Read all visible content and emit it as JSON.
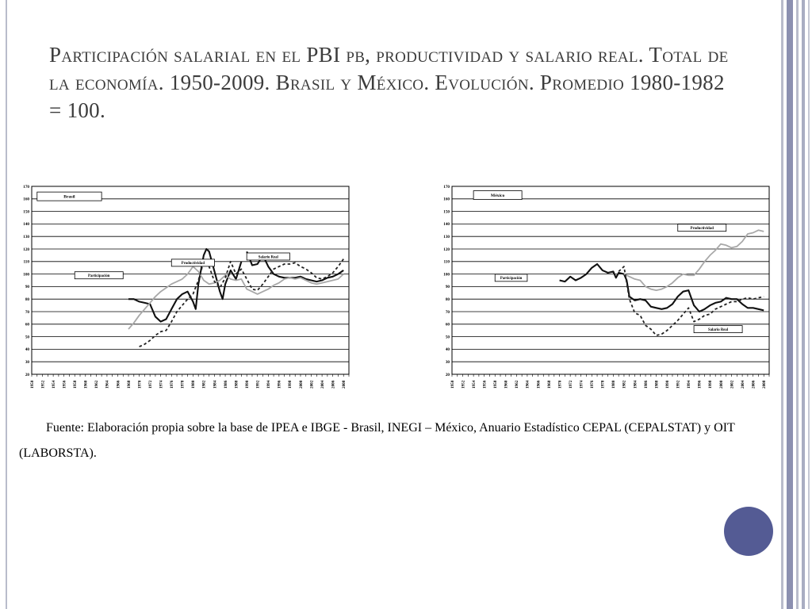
{
  "title": "Participación salarial en el PBI pb, productividad y salario real. Total de la economía. 1950-2009. Brasil y México. Evolución. Promedio 1980-1982 = 100.",
  "source_text": "Fuente: Elaboración propia sobre la base de IPEA e IBGE - Brasil, INEGI – México, Anuario Estadístico CEPAL (CEPALSTAT) y OIT (LABORSTA).",
  "colors": {
    "participacion": "#111111",
    "productividad": "#a8a8a8",
    "salario_real": "#222222",
    "accent_dot": "#545b94",
    "strip": "#b9bccb"
  },
  "chart_data": [
    {
      "type": "line",
      "title": "Brasil",
      "x_tick_labels": [
        "1950",
        "1952",
        "1954",
        "1956",
        "1958",
        "1960",
        "1962",
        "1964",
        "1966",
        "1968",
        "1970",
        "1972",
        "1974",
        "1976",
        "1978",
        "1980",
        "1982",
        "1984",
        "1986",
        "1988",
        "1990",
        "1992",
        "1994",
        "1996",
        "1998",
        "2000",
        "2002",
        "2004",
        "2006",
        "2008"
      ],
      "y_tick_labels": [
        "20",
        "30",
        "40",
        "50",
        "60",
        "70",
        "80",
        "90",
        "100",
        "110",
        "120",
        "130",
        "140",
        "150",
        "160",
        "170"
      ],
      "xlim": [
        1950,
        2009
      ],
      "ylim": [
        20,
        170
      ],
      "grid": true,
      "annotations": [
        "Productividad",
        "Salario Real",
        "Participación"
      ],
      "series": [
        {
          "name": "Participación",
          "style": "solid",
          "segments": [
            [
              [
                1968,
                80
              ],
              [
                1969,
                80
              ],
              [
                1970,
                78
              ],
              [
                1971,
                77
              ],
              [
                1972,
                76
              ],
              [
                1973,
                66
              ],
              [
                1974,
                62
              ],
              [
                1975,
                64
              ],
              [
                1976,
                72
              ],
              [
                1977,
                80
              ],
              [
                1978,
                84
              ],
              [
                1979,
                86
              ],
              [
                1980,
                78
              ],
              [
                1980.5,
                72
              ],
              [
                1981,
                92
              ],
              [
                1982,
                115
              ],
              [
                1982.5,
                120
              ],
              [
                1983,
                118
              ],
              [
                1984,
                102
              ],
              [
                1985,
                86
              ],
              [
                1985.5,
                80
              ],
              [
                1986,
                92
              ],
              [
                1987,
                103
              ],
              [
                1988,
                96
              ],
              [
                1989,
                110
              ]
            ],
            [
              [
                1990,
                118
              ],
              [
                1991,
                107
              ],
              [
                1992,
                108
              ],
              [
                1993,
                115
              ],
              [
                1994,
                106
              ],
              [
                1995,
                100
              ],
              [
                1996,
                98
              ],
              [
                1997,
                97
              ],
              [
                1998,
                97
              ],
              [
                1999,
                97
              ],
              [
                2000,
                98
              ],
              [
                2001,
                96
              ],
              [
                2002,
                95
              ],
              [
                2003,
                94
              ],
              [
                2004,
                95
              ],
              [
                2005,
                97
              ],
              [
                2006,
                98
              ],
              [
                2007,
                100
              ],
              [
                2008,
                103
              ]
            ]
          ]
        },
        {
          "name": "Productividad",
          "style": "gray",
          "segments": [
            [
              [
                1968,
                56
              ],
              [
                1969,
                61
              ],
              [
                1970,
                67
              ],
              [
                1971,
                72
              ],
              [
                1972,
                77
              ],
              [
                1973,
                82
              ],
              [
                1974,
                86
              ],
              [
                1975,
                89
              ],
              [
                1976,
                92
              ],
              [
                1977,
                94
              ],
              [
                1978,
                96
              ],
              [
                1979,
                100
              ],
              [
                1980,
                106
              ],
              [
                1981,
                102
              ],
              [
                1982,
                95
              ],
              [
                1983,
                92
              ],
              [
                1984,
                93
              ],
              [
                1985,
                95
              ],
              [
                1986,
                99
              ],
              [
                1987,
                96
              ],
              [
                1988,
                95
              ],
              [
                1989,
                96
              ],
              [
                1990,
                88
              ],
              [
                1991,
                86
              ],
              [
                1992,
                84
              ],
              [
                1993,
                86
              ],
              [
                1994,
                88
              ],
              [
                1995,
                91
              ],
              [
                1996,
                93
              ],
              [
                1997,
                96
              ],
              [
                1998,
                97
              ],
              [
                1999,
                96
              ],
              [
                2000,
                97
              ],
              [
                2001,
                95
              ],
              [
                2002,
                93
              ],
              [
                2003,
                92
              ],
              [
                2004,
                93
              ],
              [
                2005,
                94
              ],
              [
                2006,
                95
              ],
              [
                2007,
                96
              ],
              [
                2008,
                100
              ]
            ]
          ]
        },
        {
          "name": "Salario Real",
          "style": "dashed",
          "segments": [
            [
              [
                1970,
                42
              ],
              [
                1971,
                44
              ],
              [
                1972,
                47
              ],
              [
                1973,
                51
              ],
              [
                1974,
                54
              ],
              [
                1975,
                55
              ],
              [
                1976,
                62
              ],
              [
                1977,
                70
              ],
              [
                1978,
                75
              ],
              [
                1979,
                80
              ],
              [
                1980,
                84
              ],
              [
                1981,
                95
              ],
              [
                1982,
                110
              ],
              [
                1983,
                106
              ],
              [
                1984,
                94
              ],
              [
                1985,
                89
              ],
              [
                1986,
                97
              ],
              [
                1987,
                110
              ],
              [
                1988,
                100
              ],
              [
                1989,
                104
              ],
              [
                1990,
                96
              ],
              [
                1991,
                88
              ],
              [
                1992,
                87
              ],
              [
                1993,
                92
              ],
              [
                1994,
                98
              ],
              [
                1995,
                104
              ],
              [
                1996,
                106
              ],
              [
                1997,
                108
              ],
              [
                1998,
                108
              ],
              [
                1999,
                109
              ],
              [
                2000,
                106
              ],
              [
                2001,
                104
              ],
              [
                2002,
                101
              ],
              [
                2003,
                97
              ],
              [
                2004,
                96
              ],
              [
                2005,
                98
              ],
              [
                2006,
                101
              ],
              [
                2007,
                106
              ],
              [
                2008,
                112
              ]
            ]
          ]
        }
      ]
    },
    {
      "type": "line",
      "title": "México",
      "x_tick_labels": [
        "1950",
        "1952",
        "1954",
        "1956",
        "1958",
        "1960",
        "1962",
        "1964",
        "1966",
        "1968",
        "1970",
        "1972",
        "1974",
        "1976",
        "1978",
        "1980",
        "1982",
        "1984",
        "1986",
        "1988",
        "1990",
        "1992",
        "1994",
        "1996",
        "1998",
        "2000",
        "2002",
        "2004",
        "2006",
        "2008"
      ],
      "y_tick_labels": [
        "20",
        "30",
        "40",
        "50",
        "60",
        "70",
        "80",
        "90",
        "100",
        "110",
        "120",
        "130",
        "140",
        "150",
        "160",
        "170"
      ],
      "xlim": [
        1950,
        2009
      ],
      "ylim": [
        20,
        170
      ],
      "grid": true,
      "annotations": [
        "Productividad",
        "Participación",
        "Salario Real"
      ],
      "series": [
        {
          "name": "Participación",
          "style": "solid",
          "segments": [
            [
              [
                1970,
                95
              ],
              [
                1971,
                94
              ],
              [
                1972,
                98
              ],
              [
                1973,
                95
              ],
              [
                1974,
                97
              ],
              [
                1975,
                100
              ],
              [
                1976,
                105
              ],
              [
                1977,
                108
              ],
              [
                1978,
                103
              ],
              [
                1979,
                101
              ],
              [
                1980,
                102
              ],
              [
                1980.5,
                97
              ],
              [
                1981,
                101
              ],
              [
                1982,
                100
              ],
              [
                1982.5,
                95
              ],
              [
                1983,
                82
              ],
              [
                1984,
                79
              ],
              [
                1985,
                80
              ],
              [
                1986,
                79
              ],
              [
                1987,
                74
              ],
              [
                1988,
                73
              ],
              [
                1989,
                72
              ],
              [
                1990,
                73
              ],
              [
                1991,
                76
              ],
              [
                1992,
                82
              ],
              [
                1993,
                86
              ],
              [
                1994,
                87
              ],
              [
                1995,
                75
              ],
              [
                1996,
                70
              ],
              [
                1997,
                72
              ],
              [
                1998,
                75
              ],
              [
                1999,
                77
              ],
              [
                2000,
                78
              ],
              [
                2001,
                81
              ],
              [
                2002,
                80
              ],
              [
                2003,
                80
              ],
              [
                2004,
                76
              ],
              [
                2005,
                73
              ],
              [
                2006,
                73
              ],
              [
                2007,
                72
              ],
              [
                2008,
                71
              ]
            ]
          ]
        },
        {
          "name": "Productividad",
          "style": "gray",
          "segments": [
            [
              [
                1982,
                100
              ],
              [
                1983,
                98
              ],
              [
                1984,
                96
              ],
              [
                1985,
                95
              ],
              [
                1986,
                90
              ],
              [
                1987,
                88
              ],
              [
                1988,
                87
              ],
              [
                1989,
                88
              ],
              [
                1990,
                90
              ],
              [
                1991,
                93
              ],
              [
                1992,
                97
              ],
              [
                1993,
                100
              ],
              [
                1994,
                99
              ],
              [
                1995,
                99
              ],
              [
                1996,
                104
              ],
              [
                1997,
                110
              ],
              [
                1998,
                115
              ],
              [
                1999,
                119
              ],
              [
                2000,
                124
              ],
              [
                2001,
                123
              ],
              [
                2002,
                121
              ],
              [
                2003,
                122
              ],
              [
                2004,
                126
              ],
              [
                2005,
                132
              ],
              [
                2006,
                133
              ],
              [
                2007,
                135
              ],
              [
                2008,
                134
              ]
            ]
          ]
        },
        {
          "name": "Salario Real",
          "style": "dashed",
          "segments": [
            [
              [
                1981,
                102
              ],
              [
                1982,
                106
              ],
              [
                1983,
                80
              ],
              [
                1984,
                69
              ],
              [
                1985,
                67
              ],
              [
                1986,
                59
              ],
              [
                1987,
                56
              ],
              [
                1988,
                51
              ],
              [
                1989,
                52
              ],
              [
                1990,
                55
              ],
              [
                1991,
                59
              ],
              [
                1992,
                63
              ],
              [
                1993,
                68
              ],
              [
                1994,
                73
              ],
              [
                1995,
                62
              ],
              [
                1996,
                64
              ],
              [
                1997,
                67
              ],
              [
                1998,
                68
              ],
              [
                1999,
                72
              ],
              [
                2000,
                74
              ],
              [
                2001,
                76
              ],
              [
                2002,
                78
              ],
              [
                2003,
                78
              ],
              [
                2004,
                80
              ],
              [
                2005,
                81
              ],
              [
                2006,
                80
              ],
              [
                2007,
                81
              ],
              [
                2008,
                82
              ]
            ]
          ]
        }
      ]
    }
  ]
}
